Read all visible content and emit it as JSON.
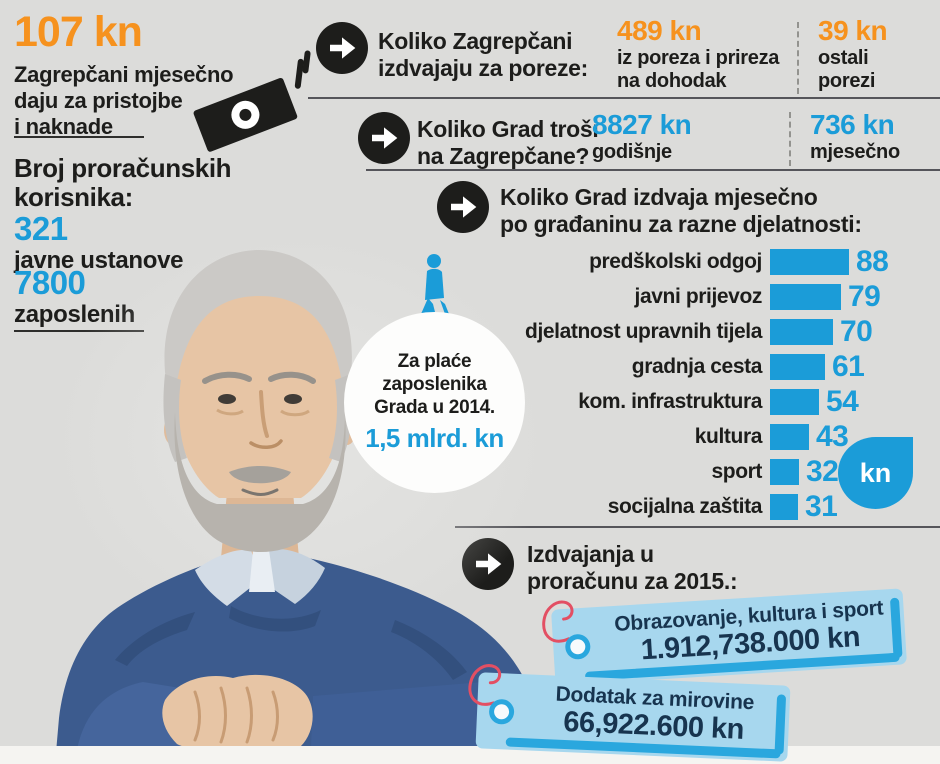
{
  "left": {
    "fees_value": "107 kn",
    "fees_desc": "Zagrepčani mjesečno\ndaju za pristojbe\ni naknade",
    "budget_users_heading": "Broj proračunskih\nkorisnika:",
    "institutions_value": "321",
    "institutions_label": "javne ustanove",
    "employees_value": "7800",
    "employees_label": "zaposlenih"
  },
  "sections": {
    "taxes": {
      "heading": "Koliko Zagrepčani\nizdvajaju za poreze:",
      "income_tax_value": "489 kn",
      "income_tax_label": "iz poreza i prireza\nna dohodak",
      "other_tax_value": "39 kn",
      "other_tax_label": "ostali\nporezi"
    },
    "spending": {
      "heading": "Koliko Grad troši\nna Zagrepčane?",
      "yearly_value": "8827 kn",
      "yearly_label": "godišnje",
      "monthly_value": "736 kn",
      "monthly_label": "mjesečno"
    },
    "activities": {
      "heading": "Koliko Grad izdvaja mjesečno\npo građaninu za razne djelatnosti:",
      "currency_badge": "kn"
    },
    "salaries": {
      "text": "Za plaće\nzaposlenika\nGrada u 2014.",
      "value": "1,5 mlrd. kn"
    },
    "budget2015": {
      "heading": "Izdvajanja u\nproračunu za 2015.:",
      "tags": [
        {
          "label": "Obrazovanje, kultura i sport",
          "value": "1.912,738.000 kn"
        },
        {
          "label": "Dodatak za mirovine",
          "value": "66,922.600 kn"
        }
      ]
    }
  },
  "chart_data": {
    "type": "bar",
    "orientation": "horizontal",
    "title": "Koliko Grad izdvaja mjesečno po građaninu za razne djelatnosti (kn)",
    "categories": [
      "predškolski odgoj",
      "javni prijevoz",
      "djelatnost upravnih tijela",
      "gradnja cesta",
      "kom. infrastruktura",
      "kultura",
      "sport",
      "socijalna zaštita"
    ],
    "values": [
      88,
      79,
      70,
      61,
      54,
      43,
      32,
      31
    ],
    "unit": "kn",
    "xlim": [
      0,
      100
    ],
    "bar_color": "#1b9cd8",
    "value_labels_shown": true
  },
  "icons": {
    "arrow": "arrow-right-icon",
    "banknote": "banknote-icon",
    "walking_person": "person-walking-icon"
  },
  "colors": {
    "background": "#dcdcda",
    "orange": "#f6921e",
    "blue": "#1b9cd8",
    "navy": "#17344f",
    "tag_fill": "#a7d7ee",
    "tag_accent": "#2aa7de",
    "black": "#1d1d1b"
  },
  "photo": {
    "alt": "grey-haired man in blue sweater, hands clasped"
  }
}
